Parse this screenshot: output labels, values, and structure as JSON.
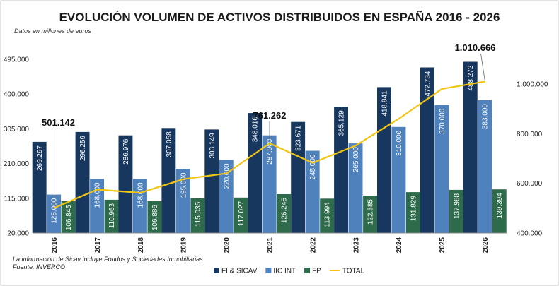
{
  "colors": {
    "fi": "#17375e",
    "iic": "#4f81bd",
    "fp": "#2e6b4b",
    "total": "#f2c511",
    "border": "#c8c8c8",
    "grid": "#d9d9d9"
  },
  "chart_data": {
    "type": "bar",
    "title": "EVOLUCIÓN VOLUMEN DE ACTIVOS DISTRIBUIDOS EN ESPAÑA 2016 - 2026",
    "subtitle": "Datos en millones de euros",
    "categories": [
      "2016",
      "2017",
      "2018",
      "2019",
      "2020",
      "2021",
      "2022",
      "2023",
      "2024",
      "2025",
      "2026"
    ],
    "series": [
      {
        "name": "FI & SICAV",
        "axis": "left",
        "values": [
          269297,
          296259,
          286976,
          307058,
          303149,
          348016,
          323671,
          365129,
          418841,
          472734,
          488272
        ],
        "labels": [
          "269.297",
          "296.259",
          "286.976",
          "307.058",
          "303.149",
          "348.016",
          "323.671",
          "365.129",
          "418.841",
          "472.734",
          "488.272"
        ]
      },
      {
        "name": "IIC INT",
        "axis": "left",
        "values": [
          125000,
          168000,
          168000,
          195000,
          220000,
          287000,
          245000,
          265000,
          310000,
          370000,
          383000
        ],
        "labels": [
          "125.000",
          "168.000",
          "168.000",
          "195.000",
          "220.000",
          "287.000",
          "245.000",
          "265.000",
          "310.000",
          "370.000",
          "383.000"
        ]
      },
      {
        "name": "FP",
        "axis": "left",
        "values": [
          106845,
          110963,
          106886,
          115035,
          117027,
          126246,
          113994,
          122385,
          131829,
          137988,
          139394
        ],
        "labels": [
          "106.845",
          "110.963",
          "106.886",
          "115.035",
          "117.027",
          "126.246",
          "113.994",
          "122.385",
          "131.829",
          "137.988",
          "139.394"
        ]
      },
      {
        "name": "TOTAL",
        "type": "line",
        "axis": "right",
        "values": [
          501142,
          575222,
          561862,
          617093,
          640176,
          761262,
          682665,
          752514,
          860670,
          980722,
          1010666
        ]
      }
    ],
    "left_axis": {
      "ylim": [
        20000,
        495000
      ],
      "ticks": [
        20000,
        115000,
        210000,
        305000,
        400000,
        495000
      ],
      "tick_labels": [
        "20.000",
        "115.000",
        "210.000",
        "305.000",
        "400.000",
        "495.000"
      ]
    },
    "right_axis": {
      "ylim": [
        400000,
        1100000
      ],
      "ticks": [
        400000,
        600000,
        800000,
        1000000
      ],
      "tick_labels": [
        "400.000",
        "600.000",
        "800.000",
        "1.000.000"
      ]
    },
    "callouts": [
      {
        "category": "2016",
        "value": 501142,
        "text": "501.142"
      },
      {
        "category": "2021",
        "value": 761262,
        "text": "761.262"
      },
      {
        "category": "2026",
        "value": 1010666,
        "text": "1.010.666"
      }
    ],
    "legend_placement": "bottom",
    "grid": false
  },
  "footer": {
    "note": "La información de Sicav incluye Fondos y Sociedades Inmobiliarias",
    "source": "Fuente: INVERCO"
  }
}
